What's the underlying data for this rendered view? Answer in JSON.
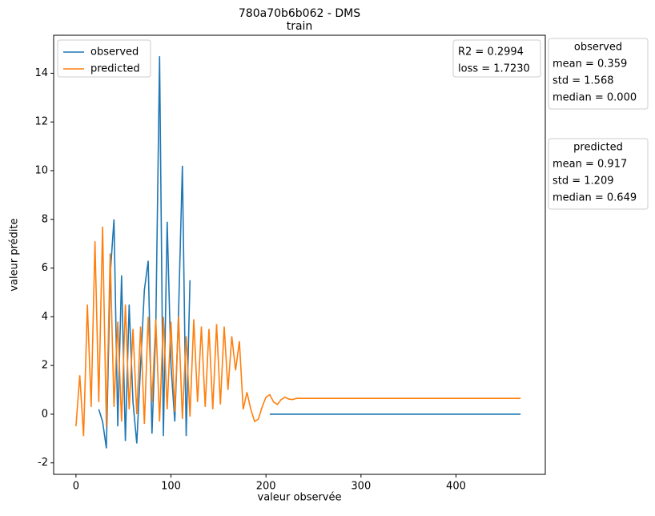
{
  "chart_data": {
    "type": "line",
    "title": "780a70b6b062 - DMS",
    "subtitle": "train",
    "x_label": "valeur observée",
    "y_label": "valeur prédite",
    "x": [
      0,
      4,
      8,
      12,
      16,
      20,
      24,
      28,
      32,
      36,
      40,
      44,
      48,
      52,
      56,
      60,
      64,
      68,
      72,
      76,
      80,
      84,
      88,
      92,
      96,
      100,
      104,
      108,
      112,
      116,
      120,
      124,
      128,
      132,
      136,
      140,
      144,
      148,
      152,
      156,
      160,
      164,
      168,
      172,
      176,
      180,
      184,
      188,
      192,
      196,
      200,
      204,
      208,
      212,
      216,
      220,
      224,
      228,
      232,
      236,
      240,
      244,
      248,
      252,
      256,
      260,
      264,
      268,
      272,
      276,
      280,
      284,
      288,
      292,
      296,
      300,
      304,
      308,
      312,
      316,
      320,
      324,
      328,
      332,
      336,
      340,
      344,
      348,
      352,
      356,
      360,
      364,
      368,
      372,
      376,
      380,
      384,
      388,
      392,
      396,
      400,
      404,
      408,
      412,
      416,
      420,
      424,
      428,
      432,
      436,
      440,
      444,
      448,
      452,
      456,
      460,
      464,
      468
    ],
    "series": [
      {
        "name": "observed",
        "color": "#1f77b4",
        "values": [
          null,
          null,
          null,
          null,
          null,
          null,
          0.2,
          -0.3,
          -1.4,
          5.7,
          8.0,
          -0.5,
          5.7,
          -1.1,
          4.5,
          0.5,
          -1.2,
          2.0,
          5.1,
          6.3,
          -0.8,
          3.5,
          14.7,
          -0.9,
          7.9,
          2.0,
          -0.3,
          4.2,
          10.2,
          -0.9,
          5.5,
          null,
          null,
          null,
          null,
          null,
          null,
          null,
          null,
          null,
          null,
          null,
          null,
          null,
          null,
          null,
          null,
          null,
          null,
          null,
          null,
          0,
          0,
          0,
          0,
          0,
          0,
          0,
          0,
          0,
          0,
          0,
          0,
          0,
          0,
          0,
          0,
          0,
          0,
          0,
          0,
          0,
          0,
          0,
          0,
          0,
          0,
          0,
          0,
          0,
          0,
          0,
          0,
          0,
          0,
          0,
          0,
          0,
          0,
          0,
          0,
          0,
          0,
          0,
          0,
          0,
          0,
          0,
          0,
          0,
          0,
          0,
          0,
          0,
          0,
          0,
          0,
          0,
          0,
          0,
          0,
          0,
          0,
          0,
          0,
          0,
          0,
          0
        ]
      },
      {
        "name": "predicted",
        "color": "#ff7f0e",
        "values": [
          -0.5,
          1.6,
          -0.9,
          4.5,
          0.3,
          7.1,
          0.5,
          7.7,
          -0.5,
          6.6,
          0.3,
          3.8,
          -0.3,
          4.5,
          0.2,
          3.5,
          0,
          3.6,
          -0.4,
          4.0,
          0.5,
          3.9,
          -0.3,
          4.0,
          0.2,
          3.8,
          0.1,
          4.0,
          -0.2,
          3.2,
          -0.1,
          3.9,
          0.5,
          3.6,
          0.3,
          3.5,
          0.2,
          3.7,
          0.4,
          3.6,
          1.0,
          3.2,
          1.8,
          3.0,
          0.2,
          0.9,
          0.2,
          -0.3,
          -0.2,
          0.3,
          0.7,
          0.8,
          0.5,
          0.4,
          0.6,
          0.7,
          0.62,
          0.6,
          0.65,
          0.649,
          0.649,
          0.649,
          0.649,
          0.649,
          0.649,
          0.649,
          0.649,
          0.649,
          0.649,
          0.649,
          0.649,
          0.649,
          0.649,
          0.649,
          0.649,
          0.649,
          0.649,
          0.649,
          0.649,
          0.649,
          0.649,
          0.649,
          0.649,
          0.649,
          0.649,
          0.649,
          0.649,
          0.649,
          0.649,
          0.649,
          0.649,
          0.649,
          0.649,
          0.649,
          0.649,
          0.649,
          0.649,
          0.649,
          0.649,
          0.649,
          0.649,
          0.649,
          0.649,
          0.649,
          0.649,
          0.649,
          0.649,
          0.649,
          0.649,
          0.649,
          0.649,
          0.649,
          0.649,
          0.649,
          0.649,
          0.649,
          0.649,
          0.649
        ]
      }
    ],
    "xlim": [
      -23.5,
      494
    ],
    "xticks": [
      0,
      100,
      200,
      300,
      400
    ],
    "ylim": [
      -2.47,
      15.56
    ],
    "yticks": [
      -2,
      0,
      2,
      4,
      6,
      8,
      10,
      12,
      14
    ],
    "legend": "upper left",
    "metrics": [
      "R2 = 0.2994",
      "loss = 1.7230"
    ],
    "stat_boxes": [
      {
        "title": "observed",
        "lines": [
          "mean = 0.359",
          "std = 1.568",
          "median = 0.000"
        ]
      },
      {
        "title": "predicted",
        "lines": [
          "mean = 0.917",
          "std = 1.209",
          "median = 0.649"
        ]
      }
    ]
  }
}
